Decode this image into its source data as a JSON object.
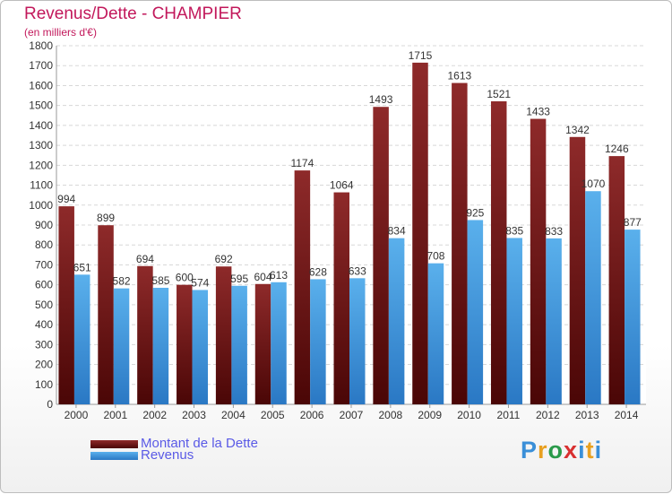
{
  "header": {
    "title": "Revenus/Dette - CHAMPIER",
    "subtitle": "(en milliers d'€)"
  },
  "colors": {
    "dette": "#7a1a1a",
    "revenus": "#48a0e0",
    "title": "#c2185b",
    "legend_text": "#5a5ae6"
  },
  "legend": [
    {
      "label": "Montant de la Dette",
      "color": "#7a1a1a"
    },
    {
      "label": "Revenus",
      "color": "#48a0e0"
    }
  ],
  "logo": {
    "text": "Proxiti",
    "letter_colors": [
      "#3a8fd8",
      "#e8a020",
      "#2a9a4a",
      "#d83030",
      "#3a8fd8",
      "#e8a020",
      "#3a8fd8"
    ]
  },
  "chart_data": {
    "type": "bar",
    "title": "Revenus/Dette - CHAMPIER",
    "subtitle": "(en milliers d'€)",
    "categories": [
      "2000",
      "2001",
      "2002",
      "2003",
      "2004",
      "2005",
      "2006",
      "2007",
      "2008",
      "2009",
      "2010",
      "2011",
      "2012",
      "2013",
      "2014"
    ],
    "series": [
      {
        "name": "Montant de la Dette",
        "values": [
          994,
          899,
          694,
          600,
          692,
          604,
          1174,
          1064,
          1493,
          1715,
          1613,
          1521,
          1433,
          1342,
          1246
        ]
      },
      {
        "name": "Revenus",
        "values": [
          651,
          582,
          585,
          574,
          595,
          613,
          628,
          633,
          834,
          708,
          925,
          835,
          833,
          1070,
          877
        ]
      }
    ],
    "ylim": [
      0,
      1800
    ],
    "yticks": [
      0,
      100,
      200,
      300,
      400,
      500,
      600,
      700,
      800,
      900,
      1000,
      1100,
      1200,
      1300,
      1400,
      1500,
      1600,
      1700,
      1800
    ],
    "grid": true,
    "legend_position": "bottom-left"
  }
}
